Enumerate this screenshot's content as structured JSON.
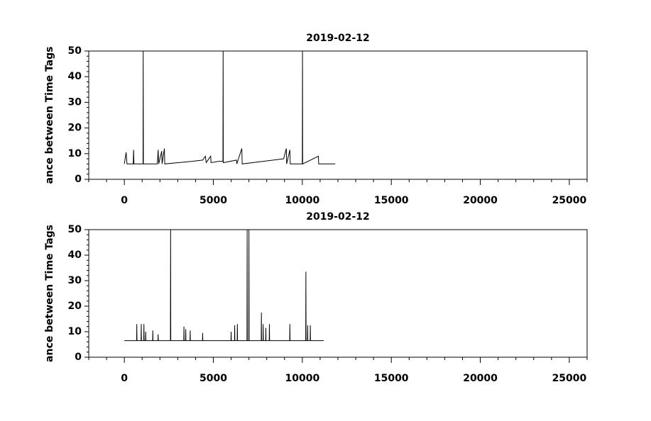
{
  "chart_data": [
    {
      "type": "line",
      "title": "2019-02-12",
      "y_label": "ance between Time Tags",
      "xlim": [
        -2000,
        26000
      ],
      "xticks": [
        0,
        5000,
        10000,
        15000,
        20000,
        25000
      ],
      "ylim": [
        0,
        50
      ],
      "yticks": [
        0,
        10,
        20,
        30,
        40,
        50
      ],
      "series": [
        {
          "color": "#000000",
          "x": [
            0,
            100,
            150,
            500,
            520,
            540,
            1050,
            1060,
            1070,
            1850,
            1870,
            1900,
            1930,
            2100,
            2120,
            2250,
            2270,
            3800,
            4400,
            4550,
            4600,
            4850,
            4870,
            5300,
            5540,
            5550,
            5560,
            6300,
            6320,
            6600,
            6620,
            8950,
            9100,
            9120,
            9300,
            9320,
            10000,
            10010,
            10020,
            10900,
            10920,
            11850
          ],
          "values": [
            6,
            10.5,
            6,
            6,
            11.5,
            6,
            6,
            50,
            6,
            6,
            8,
            11.5,
            6,
            11,
            6,
            12,
            6,
            7,
            7.5,
            9,
            6.5,
            9,
            6.5,
            7,
            7,
            50,
            6.5,
            7.5,
            6,
            12,
            6,
            8,
            12,
            6,
            11.5,
            6,
            6,
            50,
            6,
            9,
            6,
            6
          ]
        }
      ]
    },
    {
      "type": "line",
      "title": "2019-02-12",
      "y_label": "ance between Time Tags",
      "xlim": [
        -2000,
        26000
      ],
      "xticks": [
        0,
        5000,
        10000,
        15000,
        20000,
        25000
      ],
      "ylim": [
        0,
        50
      ],
      "yticks": [
        0,
        10,
        20,
        30,
        40,
        50
      ],
      "series": [
        {
          "color": "#000000",
          "x": [
            0,
            690,
            700,
            710,
            940,
            950,
            960,
            1090,
            1100,
            1110,
            1190,
            1200,
            1210,
            1590,
            1600,
            1610,
            1890,
            1900,
            1910,
            2590,
            2600,
            2610,
            3340,
            3350,
            3360,
            3440,
            3450,
            3460,
            3690,
            3700,
            3710,
            4390,
            4400,
            4410,
            5990,
            6000,
            6010,
            6190,
            6200,
            6210,
            6340,
            6350,
            6360,
            6890,
            6900,
            6910,
            6990,
            7000,
            7010,
            7690,
            7700,
            7710,
            7790,
            7800,
            7810,
            7940,
            7950,
            7960,
            8140,
            8150,
            8160,
            9290,
            9300,
            9310,
            10190,
            10200,
            10210,
            10290,
            10300,
            10310,
            10440,
            10450,
            10460,
            11200
          ],
          "values": [
            6.5,
            6.5,
            13,
            6.5,
            6.5,
            13,
            6.5,
            6.5,
            13,
            6.5,
            6.5,
            10,
            6.5,
            6.5,
            10.5,
            6.5,
            6.5,
            9,
            6.5,
            6.5,
            50,
            6.5,
            6.5,
            12,
            6.5,
            6.5,
            11,
            6.5,
            6.5,
            10.5,
            6.5,
            6.5,
            9.5,
            6.5,
            6.5,
            10,
            6.5,
            6.5,
            12.5,
            6.5,
            6.5,
            13,
            6.5,
            6.5,
            50,
            6.5,
            6.5,
            50,
            6.5,
            6.5,
            17.5,
            6.5,
            6.5,
            13,
            6.5,
            6.5,
            11.5,
            6.5,
            6.5,
            13,
            6.5,
            6.5,
            13,
            6.5,
            6.5,
            33.5,
            6.5,
            6.5,
            12.5,
            6.5,
            6.5,
            12.5,
            6.5,
            6.5
          ]
        }
      ]
    }
  ]
}
